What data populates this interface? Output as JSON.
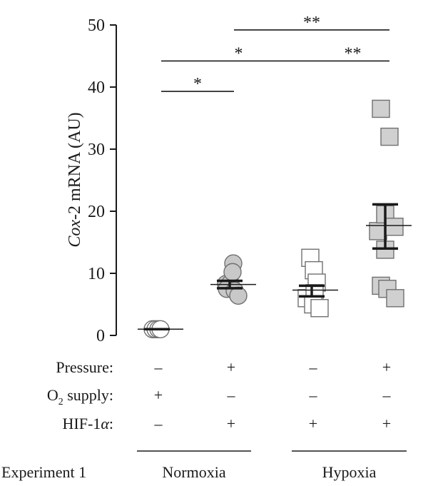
{
  "chart_data": {
    "type": "scatter",
    "ylabel_italic": "Cox",
    "ylabel_rest": "-2 mRNA (AU)",
    "ylim": [
      0,
      50
    ],
    "yticks": [
      0,
      10,
      20,
      30,
      40,
      50
    ],
    "grid": false,
    "groups": [
      {
        "marker": "circle",
        "fill": "#ffffff",
        "points": [
          [
            -0.06,
            1.0
          ],
          [
            -0.02,
            1.0
          ],
          [
            0.02,
            1.0
          ],
          [
            0.05,
            1.0
          ]
        ],
        "mean": 1.0,
        "err_low": 1.0,
        "err_high": 1.0
      },
      {
        "marker": "circle",
        "fill": "#c8c8c8",
        "points": [
          [
            -0.05,
            8.3
          ],
          [
            0.01,
            8.4
          ],
          [
            0.05,
            11.6
          ],
          [
            0.04,
            10.2
          ],
          [
            -0.04,
            7.5
          ],
          [
            0.07,
            7.2
          ],
          [
            0.12,
            6.4
          ]
        ],
        "mean": 8.2,
        "err_low": 7.6,
        "err_high": 8.8
      },
      {
        "marker": "square",
        "fill": "#ffffff",
        "points": [
          [
            -0.07,
            6.0
          ],
          [
            -0.02,
            12.5
          ],
          [
            0.03,
            10.5
          ],
          [
            0.07,
            8.5
          ],
          [
            0.04,
            6.8
          ],
          [
            0.02,
            5.0
          ],
          [
            0.11,
            4.4
          ]
        ],
        "mean": 7.3,
        "err_low": 6.3,
        "err_high": 8.0
      },
      {
        "marker": "square",
        "fill": "#d0d0d0",
        "points": [
          [
            -0.1,
            16.8
          ],
          [
            0.0,
            19.5
          ],
          [
            0.13,
            17.5
          ],
          [
            -0.06,
            8.0
          ],
          [
            0.0,
            13.8
          ],
          [
            0.03,
            7.5
          ],
          [
            -0.06,
            36.5
          ],
          [
            0.06,
            32.0
          ],
          [
            0.14,
            6.0
          ]
        ],
        "mean": 17.7,
        "err_low": 14.0,
        "err_high": 21.1
      }
    ],
    "significance": [
      {
        "from": 0,
        "to": 1,
        "y": 39.3,
        "label": "*"
      },
      {
        "from": 0,
        "to": 2,
        "y": 44.2,
        "label": "*"
      },
      {
        "from": 2,
        "to": 3,
        "y": 44.2,
        "label": "**"
      },
      {
        "from": 1,
        "to": 3,
        "y": 49.2,
        "label": "**"
      }
    ],
    "conditions": [
      {
        "label": "Pressure:",
        "values": [
          "–",
          "+",
          "–",
          "+"
        ]
      },
      {
        "label_pre": "O",
        "label_sub": "2",
        "label_post": " supply:",
        "values": [
          "+",
          "–",
          "–",
          "–"
        ]
      },
      {
        "label_pre": "HIF-1",
        "label_italic": "α",
        "label_post": ":",
        "values": [
          "–",
          "+",
          "+",
          "+"
        ]
      }
    ],
    "experiment_label": "Experiment 1",
    "conditions_groups": [
      {
        "label": "Normoxia",
        "from": 0,
        "to": 1
      },
      {
        "label": "Hypoxia",
        "from": 2,
        "to": 3
      }
    ]
  }
}
